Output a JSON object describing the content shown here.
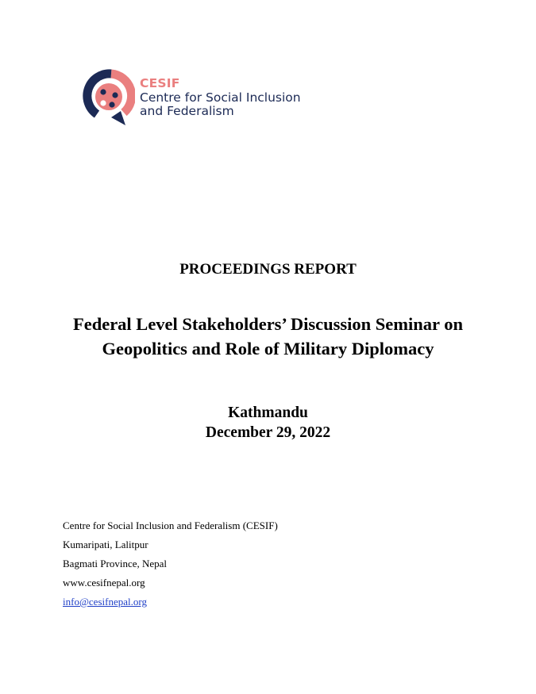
{
  "logo": {
    "acronym": "CESIF",
    "name_line1": "Centre for Social Inclusion",
    "name_line2": "and Federalism",
    "colors": {
      "navy": "#1c2a55",
      "coral": "#ea7f7f"
    }
  },
  "report_label": "PROCEEDINGS REPORT",
  "title": {
    "line1": "Federal Level Stakeholders’ Discussion Seminar on",
    "line2": "Geopolitics and Role of Military Diplomacy"
  },
  "place": "Kathmandu",
  "date": "December 29, 2022",
  "contact": {
    "organization": "Centre for Social Inclusion and Federalism (CESIF)",
    "address_line1": "Kumaripati, Lalitpur",
    "address_line2": "Bagmati Province, Nepal",
    "website": "www.cesifnepal.org",
    "email": "info@cesifnepal.org",
    "email_link_color": "#1f3fc7"
  }
}
